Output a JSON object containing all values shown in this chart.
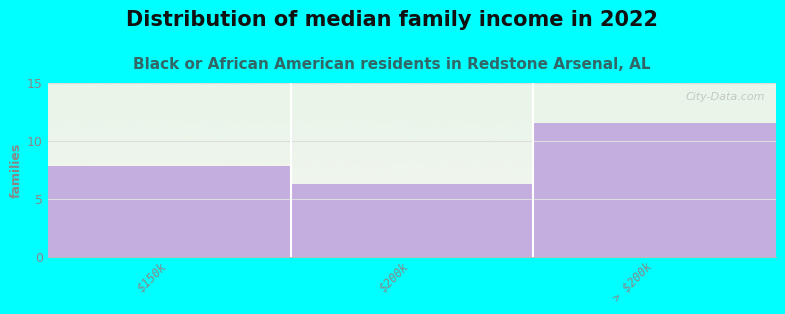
{
  "title": "Distribution of median family income in 2022",
  "subtitle": "Black or African American residents in Redstone Arsenal, AL",
  "categories": [
    "$150k",
    "$200k",
    "> $200k"
  ],
  "values": [
    7.8,
    6.3,
    11.5
  ],
  "bar_color": "#c4aee0",
  "background_color": "#00ffff",
  "plot_bg_top": "#e8f5e8",
  "plot_bg_bottom": "#f5f5f0",
  "ylabel": "families",
  "ylim": [
    0,
    15
  ],
  "yticks": [
    0,
    5,
    10,
    15
  ],
  "title_fontsize": 15,
  "subtitle_fontsize": 11,
  "title_color": "#111111",
  "subtitle_color": "#336666",
  "watermark": "City-Data.com",
  "grid_color": "#dddddd",
  "axis_color": "#bbbbbb",
  "tick_color": "#888888"
}
